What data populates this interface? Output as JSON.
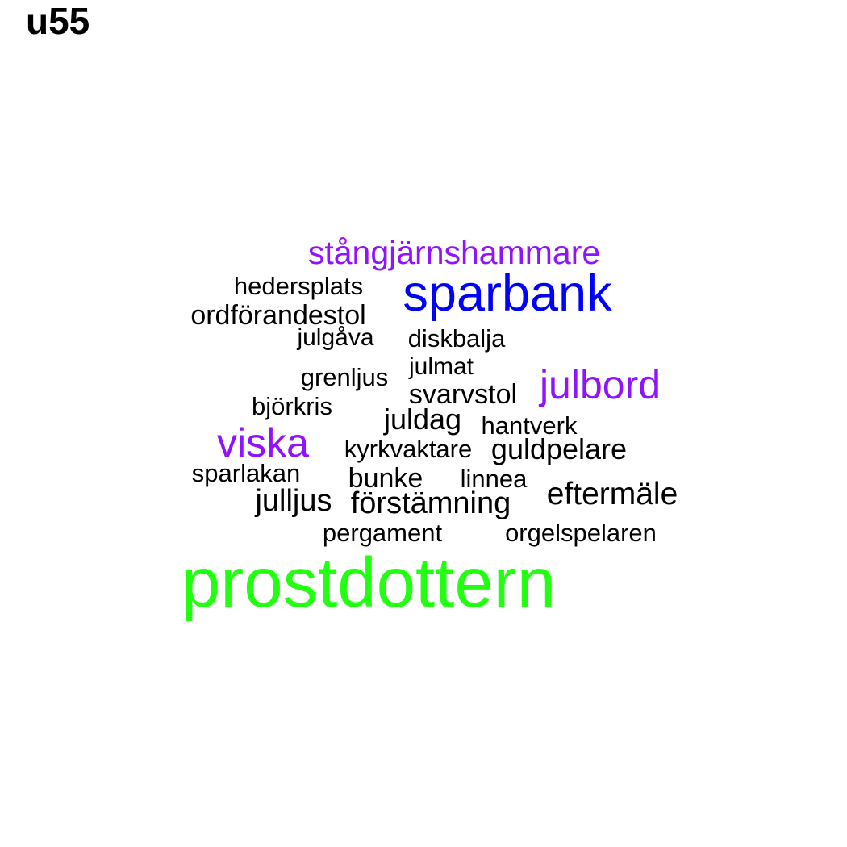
{
  "title": "u55",
  "colors": {
    "black": "#000000",
    "purple": "#9013fe",
    "blue": "#0000ff",
    "green": "#22ff11"
  },
  "words": [
    {
      "text": "stångjärnshammare",
      "color": "purple"
    },
    {
      "text": "hedersplats",
      "color": "black"
    },
    {
      "text": "sparbank",
      "color": "blue"
    },
    {
      "text": "ordförandestol",
      "color": "black"
    },
    {
      "text": "julgåva",
      "color": "black"
    },
    {
      "text": "diskbalja",
      "color": "black"
    },
    {
      "text": "julmat",
      "color": "black"
    },
    {
      "text": "grenljus",
      "color": "black"
    },
    {
      "text": "julbord",
      "color": "purple"
    },
    {
      "text": "svarvstol",
      "color": "black"
    },
    {
      "text": "björkris",
      "color": "black"
    },
    {
      "text": "juldag",
      "color": "black"
    },
    {
      "text": "hantverk",
      "color": "black"
    },
    {
      "text": "viska",
      "color": "purple"
    },
    {
      "text": "kyrkvaktare",
      "color": "black"
    },
    {
      "text": "guldpelare",
      "color": "black"
    },
    {
      "text": "sparlakan",
      "color": "black"
    },
    {
      "text": "bunke",
      "color": "black"
    },
    {
      "text": "linnea",
      "color": "black"
    },
    {
      "text": "eftermäle",
      "color": "black"
    },
    {
      "text": "julljus",
      "color": "black"
    },
    {
      "text": "förstämning",
      "color": "black"
    },
    {
      "text": "pergament",
      "color": "black"
    },
    {
      "text": "orgelspelaren",
      "color": "black"
    },
    {
      "text": "prostdottern",
      "color": "green"
    }
  ]
}
